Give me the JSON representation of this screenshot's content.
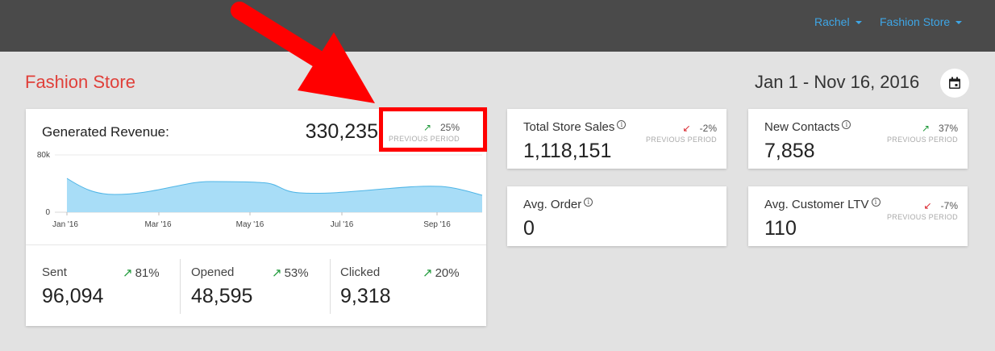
{
  "header": {
    "user_menu": "Rachel",
    "store_menu": "Fashion Store"
  },
  "page": {
    "store_title": "Fashion Store",
    "date_range": "Jan 1 - Nov 16, 2016"
  },
  "revenue_card": {
    "title": "Generated Revenue:",
    "value": "330,235",
    "change": "25%",
    "change_direction": "up",
    "period_label": "PREVIOUS PERIOD",
    "chart": {
      "y_labels": [
        "80k",
        "0"
      ],
      "x_labels": [
        "Jan '16",
        "Mar '16",
        "May '16",
        "Jul '16",
        "Sep '16"
      ],
      "fill_color": "#a8ddf7",
      "line_color": "#4fb5e6"
    },
    "stats": [
      {
        "label": "Sent",
        "change": "81%",
        "value": "96,094"
      },
      {
        "label": "Opened",
        "change": "53%",
        "value": "48,595"
      },
      {
        "label": "Clicked",
        "change": "20%",
        "value": "9,318"
      }
    ]
  },
  "kpis": {
    "total_sales": {
      "label": "Total Store Sales",
      "value": "1,118,151",
      "change": "-2%",
      "direction": "down",
      "period_label": "PREVIOUS PERIOD"
    },
    "new_contacts": {
      "label": "New Contacts",
      "value": "7,858",
      "change": "37%",
      "direction": "up",
      "period_label": "PREVIOUS PERIOD"
    },
    "avg_order": {
      "label": "Avg. Order",
      "value": "0"
    },
    "avg_ltv": {
      "label": "Avg. Customer LTV",
      "value": "110",
      "change": "-7%",
      "direction": "down",
      "period_label": "PREVIOUS PERIOD"
    }
  },
  "colors": {
    "accent_red": "#e0403a",
    "link_blue": "#3ea6e6",
    "up_green": "#1f9a3a",
    "down_red": "#d9222a",
    "annotation_red": "#ff0000"
  }
}
